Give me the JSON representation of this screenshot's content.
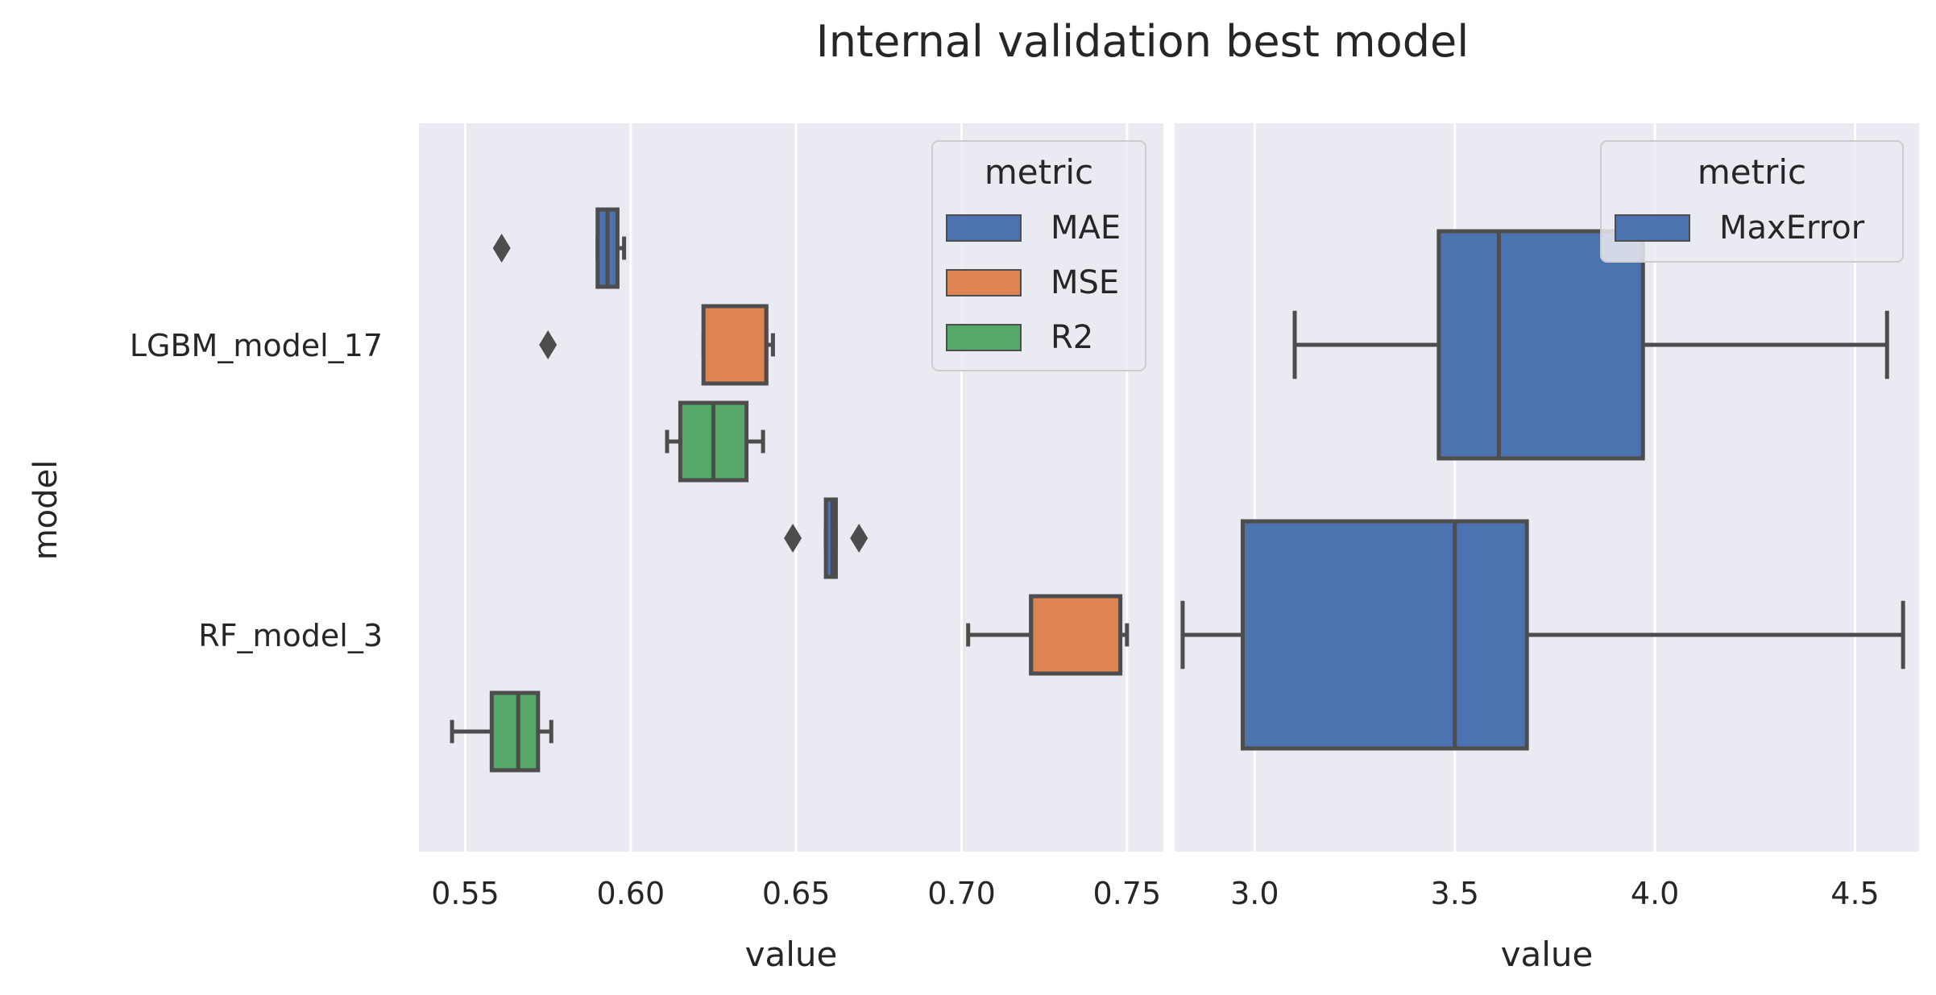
{
  "chart_data": {
    "type": "box",
    "title": "Internal validation best model",
    "ylabel": "model",
    "categories": [
      "LGBM_model_17",
      "RF_model_3"
    ],
    "panels": [
      {
        "xlabel": "value",
        "xlim": [
          0.536,
          0.761
        ],
        "ticks": [
          0.55,
          0.6,
          0.65,
          0.7,
          0.75
        ],
        "tick_labels": [
          "0.55",
          "0.60",
          "0.65",
          "0.70",
          "0.75"
        ],
        "legend": {
          "title": "metric",
          "entries": [
            {
              "label": "MAE",
              "color": "#4c72b0"
            },
            {
              "label": "MSE",
              "color": "#dd8452"
            },
            {
              "label": "R2",
              "color": "#55a868"
            }
          ],
          "position": "top-right"
        },
        "series": [
          {
            "name": "MAE",
            "color": "#4c72b0",
            "boxes": [
              {
                "whislo": 0.59,
                "q1": 0.59,
                "med": 0.593,
                "q3": 0.596,
                "whishi": 0.598,
                "fliers": [
                  0.561
                ]
              },
              {
                "whislo": 0.659,
                "q1": 0.659,
                "med": 0.661,
                "q3": 0.662,
                "whishi": 0.662,
                "fliers": [
                  0.649,
                  0.669
                ]
              }
            ]
          },
          {
            "name": "MSE",
            "color": "#dd8452",
            "boxes": [
              {
                "whislo": 0.622,
                "q1": 0.622,
                "med": 0.641,
                "q3": 0.641,
                "whishi": 0.643,
                "fliers": [
                  0.575
                ]
              },
              {
                "whislo": 0.702,
                "q1": 0.721,
                "med": 0.721,
                "q3": 0.748,
                "whishi": 0.75,
                "fliers": []
              }
            ]
          },
          {
            "name": "R2",
            "color": "#55a868",
            "boxes": [
              {
                "whislo": 0.611,
                "q1": 0.615,
                "med": 0.625,
                "q3": 0.635,
                "whishi": 0.64,
                "fliers": []
              },
              {
                "whislo": 0.546,
                "q1": 0.558,
                "med": 0.566,
                "q3": 0.572,
                "whishi": 0.576,
                "fliers": []
              }
            ]
          }
        ]
      },
      {
        "xlabel": "value",
        "xlim": [
          2.8,
          4.66
        ],
        "ticks": [
          3.0,
          3.5,
          4.0,
          4.5
        ],
        "tick_labels": [
          "3.0",
          "3.5",
          "4.0",
          "4.5"
        ],
        "legend": {
          "title": "metric",
          "entries": [
            {
              "label": "MaxError",
              "color": "#4c72b0"
            }
          ],
          "position": "top-right"
        },
        "series": [
          {
            "name": "MaxError",
            "color": "#4c72b0",
            "boxes": [
              {
                "whislo": 3.1,
                "q1": 3.46,
                "med": 3.61,
                "q3": 3.97,
                "whishi": 4.58,
                "fliers": []
              },
              {
                "whislo": 2.82,
                "q1": 2.97,
                "med": 3.5,
                "q3": 3.68,
                "whishi": 4.62,
                "fliers": []
              }
            ]
          }
        ]
      }
    ],
    "grid": true,
    "style": {
      "background": "#eaeaf2",
      "grid_color": "#ffffff",
      "line_color": "#4d4d4d"
    }
  }
}
